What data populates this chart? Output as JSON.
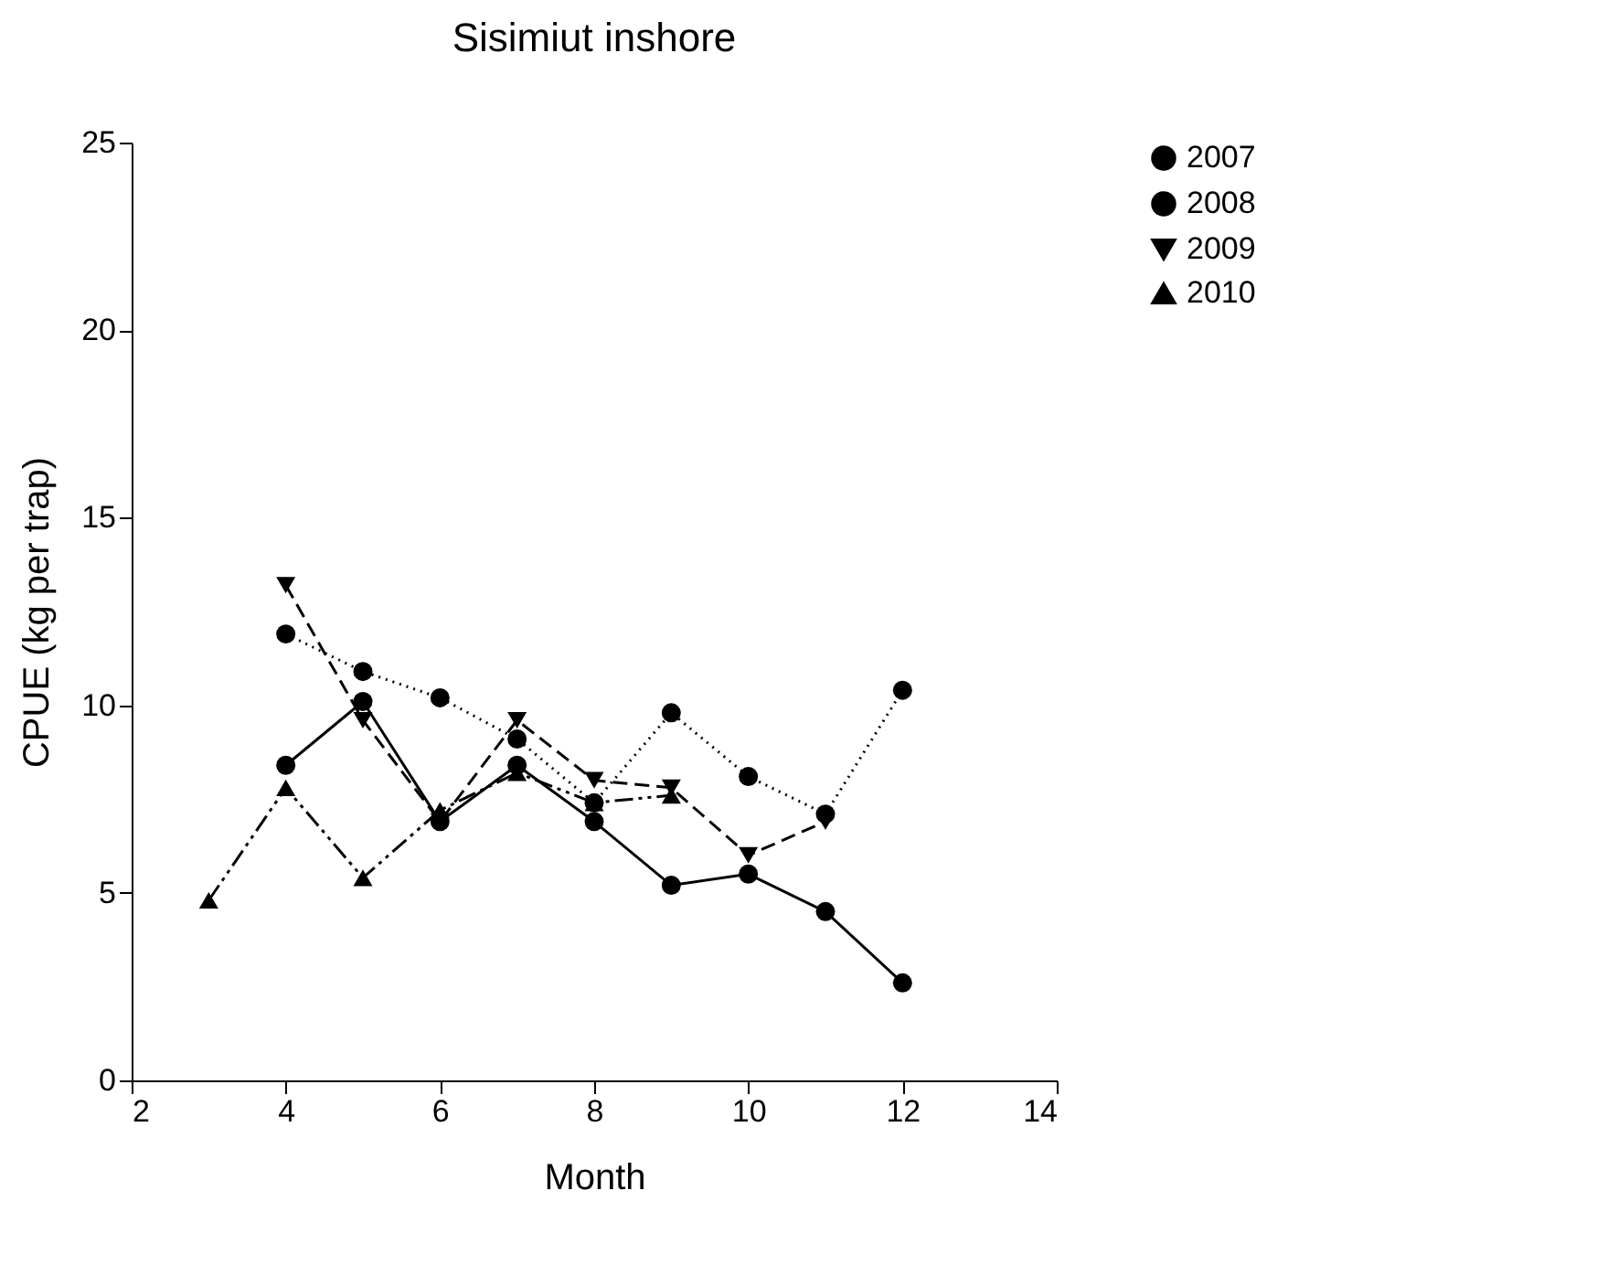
{
  "chart_data": {
    "type": "line",
    "title": "Sisimiut inshore",
    "xlabel": "Month",
    "ylabel": "CPUE (kg per trap)",
    "xlim": [
      2,
      14
    ],
    "xticks": [
      2,
      4,
      6,
      8,
      10,
      12,
      14
    ],
    "ylim": [
      0,
      25
    ],
    "yticks": [
      0,
      5,
      10,
      15,
      20,
      25
    ],
    "grid": false,
    "legend": "right",
    "series": [
      {
        "name": "2007",
        "color": "#000000",
        "marker": "circle",
        "line_style": "solid",
        "x": [
          4,
          5,
          6,
          7,
          8,
          9,
          10,
          11,
          12
        ],
        "values": [
          8.4,
          10.1,
          6.9,
          8.4,
          6.9,
          5.2,
          5.5,
          4.5,
          2.6
        ]
      },
      {
        "name": "2008",
        "color": "#000000",
        "marker": "circle",
        "line_style": "dotted",
        "x": [
          4,
          5,
          6,
          7,
          8,
          9,
          10,
          11,
          12
        ],
        "values": [
          11.9,
          10.9,
          10.2,
          9.1,
          7.4,
          9.8,
          8.1,
          7.1,
          10.4
        ]
      },
      {
        "name": "2009",
        "color": "#000000",
        "marker": "triangle-down",
        "line_style": "dashed",
        "x": [
          4,
          5,
          6,
          7,
          8,
          9,
          10,
          11
        ],
        "values": [
          13.2,
          9.6,
          6.9,
          9.6,
          8.0,
          7.8,
          6.0,
          6.9
        ]
      },
      {
        "name": "2010",
        "color": "#000000",
        "marker": "triangle",
        "line_style": "dashdotdot",
        "x": [
          3,
          4,
          5,
          6,
          7,
          8,
          9
        ],
        "values": [
          4.8,
          7.8,
          5.4,
          7.2,
          8.2,
          7.4,
          7.6
        ]
      }
    ]
  }
}
